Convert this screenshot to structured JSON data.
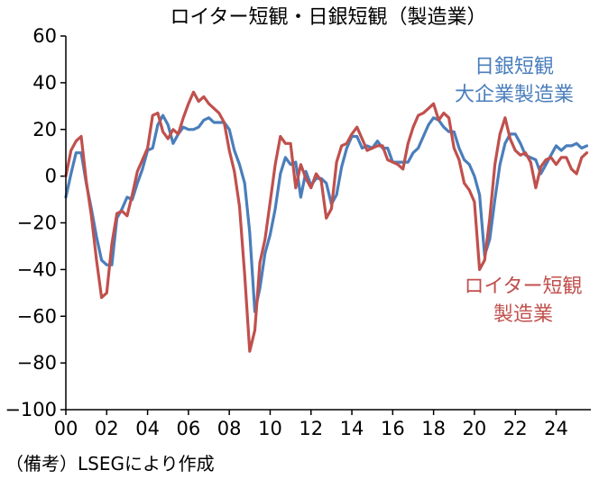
{
  "chart_data": {
    "type": "line",
    "title": "ロイター短観・日銀短観（製造業）",
    "xlabel": "",
    "ylabel": "",
    "xlim": [
      2000,
      2025.7
    ],
    "ylim": [
      -100,
      60
    ],
    "y_ticks": [
      60,
      40,
      20,
      0,
      -20,
      -40,
      -60,
      -80,
      -100
    ],
    "y_tick_labels": [
      "60",
      "40",
      "20",
      "0",
      "−20",
      "−40",
      "−60",
      "−80",
      "−100"
    ],
    "x_ticks": [
      2000,
      2002,
      2004,
      2006,
      2008,
      2010,
      2012,
      2014,
      2016,
      2018,
      2020,
      2022,
      2024
    ],
    "x_tick_labels": [
      "00",
      "02",
      "04",
      "06",
      "08",
      "10",
      "12",
      "14",
      "16",
      "18",
      "20",
      "22",
      "24"
    ],
    "grid": false,
    "series": [
      {
        "name": "日銀短観 大企業製造業",
        "label_lines": [
          "日銀短観",
          "大企業製造業"
        ],
        "color": "#4a7ebb",
        "points": [
          [
            2000.0,
            -9
          ],
          [
            2000.25,
            1
          ],
          [
            2000.5,
            10
          ],
          [
            2000.75,
            10
          ],
          [
            2001.0,
            -3
          ],
          [
            2001.25,
            -14
          ],
          [
            2001.5,
            -26
          ],
          [
            2001.75,
            -36
          ],
          [
            2002.0,
            -38
          ],
          [
            2002.25,
            -38
          ],
          [
            2002.5,
            -18
          ],
          [
            2002.75,
            -14
          ],
          [
            2003.0,
            -9
          ],
          [
            2003.25,
            -10
          ],
          [
            2003.5,
            -3
          ],
          [
            2003.75,
            3
          ],
          [
            2004.0,
            11
          ],
          [
            2004.25,
            12
          ],
          [
            2004.5,
            22
          ],
          [
            2004.75,
            26
          ],
          [
            2005.0,
            22
          ],
          [
            2005.25,
            14
          ],
          [
            2005.5,
            18
          ],
          [
            2005.75,
            21
          ],
          [
            2006.0,
            20
          ],
          [
            2006.25,
            20
          ],
          [
            2006.5,
            21
          ],
          [
            2006.75,
            24
          ],
          [
            2007.0,
            25
          ],
          [
            2007.25,
            23
          ],
          [
            2007.5,
            23
          ],
          [
            2007.75,
            23
          ],
          [
            2008.0,
            20
          ],
          [
            2008.25,
            11
          ],
          [
            2008.5,
            5
          ],
          [
            2008.75,
            -3
          ],
          [
            2009.0,
            -24
          ],
          [
            2009.25,
            -58
          ],
          [
            2009.5,
            -48
          ],
          [
            2009.75,
            -33
          ],
          [
            2010.0,
            -25
          ],
          [
            2010.25,
            -14
          ],
          [
            2010.5,
            1
          ],
          [
            2010.75,
            8
          ],
          [
            2011.0,
            5
          ],
          [
            2011.25,
            6
          ],
          [
            2011.5,
            -9
          ],
          [
            2011.75,
            2
          ],
          [
            2012.0,
            -4
          ],
          [
            2012.25,
            -1
          ],
          [
            2012.5,
            -1
          ],
          [
            2012.75,
            -3
          ],
          [
            2013.0,
            -12
          ],
          [
            2013.25,
            -8
          ],
          [
            2013.5,
            4
          ],
          [
            2013.75,
            12
          ],
          [
            2014.0,
            17
          ],
          [
            2014.25,
            17
          ],
          [
            2014.5,
            12
          ],
          [
            2014.75,
            13
          ],
          [
            2015.0,
            12
          ],
          [
            2015.25,
            15
          ],
          [
            2015.5,
            12
          ],
          [
            2015.75,
            12
          ],
          [
            2016.0,
            6
          ],
          [
            2016.25,
            6
          ],
          [
            2016.5,
            6
          ],
          [
            2016.75,
            6
          ],
          [
            2017.0,
            10
          ],
          [
            2017.25,
            12
          ],
          [
            2017.5,
            17
          ],
          [
            2017.75,
            22
          ],
          [
            2018.0,
            25
          ],
          [
            2018.25,
            24
          ],
          [
            2018.5,
            21
          ],
          [
            2018.75,
            19
          ],
          [
            2019.0,
            19
          ],
          [
            2019.25,
            12
          ],
          [
            2019.5,
            7
          ],
          [
            2019.75,
            5
          ],
          [
            2020.0,
            0
          ],
          [
            2020.25,
            -8
          ],
          [
            2020.5,
            -34
          ],
          [
            2020.75,
            -27
          ],
          [
            2021.0,
            -10
          ],
          [
            2021.25,
            5
          ],
          [
            2021.5,
            14
          ],
          [
            2021.75,
            18
          ],
          [
            2022.0,
            18
          ],
          [
            2022.25,
            14
          ],
          [
            2022.5,
            9
          ],
          [
            2022.75,
            8
          ],
          [
            2023.0,
            7
          ],
          [
            2023.25,
            1
          ],
          [
            2023.5,
            5
          ],
          [
            2023.75,
            9
          ],
          [
            2024.0,
            13
          ],
          [
            2024.25,
            11
          ],
          [
            2024.5,
            13
          ],
          [
            2024.75,
            13
          ],
          [
            2025.0,
            14
          ],
          [
            2025.25,
            12
          ],
          [
            2025.5,
            13
          ]
        ]
      },
      {
        "name": "ロイター短観 製造業",
        "label_lines": [
          "ロイター短観",
          "製造業"
        ],
        "color": "#c0504d",
        "points": [
          [
            2000.0,
            0
          ],
          [
            2000.25,
            11
          ],
          [
            2000.5,
            15
          ],
          [
            2000.75,
            17
          ],
          [
            2001.0,
            -2
          ],
          [
            2001.25,
            -17
          ],
          [
            2001.5,
            -36
          ],
          [
            2001.75,
            -52
          ],
          [
            2002.0,
            -50
          ],
          [
            2002.25,
            -29
          ],
          [
            2002.5,
            -16
          ],
          [
            2002.75,
            -15
          ],
          [
            2003.0,
            -17
          ],
          [
            2003.25,
            -8
          ],
          [
            2003.5,
            2
          ],
          [
            2003.75,
            7
          ],
          [
            2004.0,
            12
          ],
          [
            2004.25,
            26
          ],
          [
            2004.5,
            27
          ],
          [
            2004.75,
            19
          ],
          [
            2005.0,
            16
          ],
          [
            2005.25,
            20
          ],
          [
            2005.5,
            18
          ],
          [
            2005.75,
            25
          ],
          [
            2006.0,
            31
          ],
          [
            2006.25,
            36
          ],
          [
            2006.5,
            32
          ],
          [
            2006.75,
            34
          ],
          [
            2007.0,
            31
          ],
          [
            2007.25,
            29
          ],
          [
            2007.5,
            27
          ],
          [
            2007.75,
            23
          ],
          [
            2008.0,
            11
          ],
          [
            2008.25,
            2
          ],
          [
            2008.5,
            -13
          ],
          [
            2008.75,
            -42
          ],
          [
            2009.0,
            -75
          ],
          [
            2009.25,
            -66
          ],
          [
            2009.5,
            -37
          ],
          [
            2009.75,
            -27
          ],
          [
            2010.0,
            -11
          ],
          [
            2010.25,
            5
          ],
          [
            2010.5,
            17
          ],
          [
            2010.75,
            14
          ],
          [
            2011.0,
            14
          ],
          [
            2011.25,
            -5
          ],
          [
            2011.5,
            5
          ],
          [
            2011.75,
            -1
          ],
          [
            2012.0,
            -5
          ],
          [
            2012.25,
            1
          ],
          [
            2012.5,
            -2
          ],
          [
            2012.75,
            -18
          ],
          [
            2013.0,
            -14
          ],
          [
            2013.25,
            6
          ],
          [
            2013.5,
            13
          ],
          [
            2013.75,
            14
          ],
          [
            2014.0,
            18
          ],
          [
            2014.25,
            21
          ],
          [
            2014.5,
            16
          ],
          [
            2014.75,
            11
          ],
          [
            2015.0,
            12
          ],
          [
            2015.25,
            13
          ],
          [
            2015.5,
            13
          ],
          [
            2015.75,
            7
          ],
          [
            2016.0,
            6
          ],
          [
            2016.25,
            5
          ],
          [
            2016.5,
            3
          ],
          [
            2016.75,
            14
          ],
          [
            2017.0,
            21
          ],
          [
            2017.25,
            26
          ],
          [
            2017.5,
            27
          ],
          [
            2017.75,
            29
          ],
          [
            2018.0,
            31
          ],
          [
            2018.25,
            24
          ],
          [
            2018.5,
            27
          ],
          [
            2018.75,
            25
          ],
          [
            2019.0,
            12
          ],
          [
            2019.25,
            7
          ],
          [
            2019.5,
            -3
          ],
          [
            2019.75,
            -6
          ],
          [
            2020.0,
            -11
          ],
          [
            2020.25,
            -40
          ],
          [
            2020.5,
            -36
          ],
          [
            2020.75,
            -18
          ],
          [
            2021.0,
            5
          ],
          [
            2021.25,
            18
          ],
          [
            2021.5,
            25
          ],
          [
            2021.75,
            16
          ],
          [
            2022.0,
            11
          ],
          [
            2022.25,
            9
          ],
          [
            2022.5,
            10
          ],
          [
            2022.75,
            6
          ],
          [
            2023.0,
            -5
          ],
          [
            2023.25,
            4
          ],
          [
            2023.5,
            7
          ],
          [
            2023.75,
            8
          ],
          [
            2024.0,
            5
          ],
          [
            2024.25,
            8
          ],
          [
            2024.5,
            8
          ],
          [
            2024.75,
            3
          ],
          [
            2025.0,
            1
          ],
          [
            2025.25,
            8
          ],
          [
            2025.5,
            10
          ]
        ]
      }
    ],
    "note": "（備考）LSEGにより作成"
  }
}
